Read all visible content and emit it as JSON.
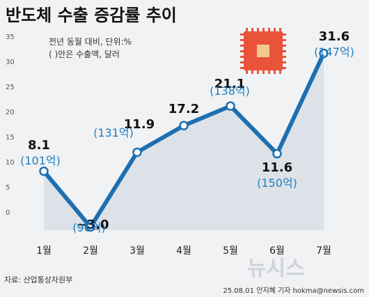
{
  "header": {
    "title": "반도체 수출 증감률 추이",
    "note_line1": "전년 동월 대비, 단위:%",
    "note_line2": "( )안은 수출액, 달러"
  },
  "footer": {
    "source": "자료: 산업통상자원부",
    "credit": "25.08.01  안지혜 기자  hokma@newsis.com",
    "watermark": "뉴시스"
  },
  "colors": {
    "line": "#1d6fb0",
    "marker_fill": "#ffffff",
    "area": "#dde2e8",
    "amount_text": "#1d7fbf",
    "chip_body": "#e8533a",
    "chip_core": "#f3c98b"
  },
  "icons": {
    "chip": "semiconductor-chip-icon"
  },
  "chart_data": {
    "type": "line",
    "categories": [
      "1월",
      "2월",
      "3월",
      "4월",
      "5월",
      "6월",
      "7월"
    ],
    "values": [
      8.1,
      -3.0,
      11.9,
      17.2,
      21.1,
      11.6,
      31.6
    ],
    "value_labels": [
      "8.1",
      "−3.0",
      "11.9",
      "17.2",
      "21.1",
      "11.6",
      "31.6"
    ],
    "amount_labels": [
      "(101억)",
      "(96억)",
      "(131억)",
      "",
      "(138억)",
      "(150억)",
      "(147억)"
    ],
    "y_ticks": [
      "35",
      "30",
      "25",
      "20",
      "15",
      "10",
      "5",
      "0"
    ],
    "ylim": [
      -5,
      36
    ],
    "grid": false,
    "area_fill": true
  }
}
